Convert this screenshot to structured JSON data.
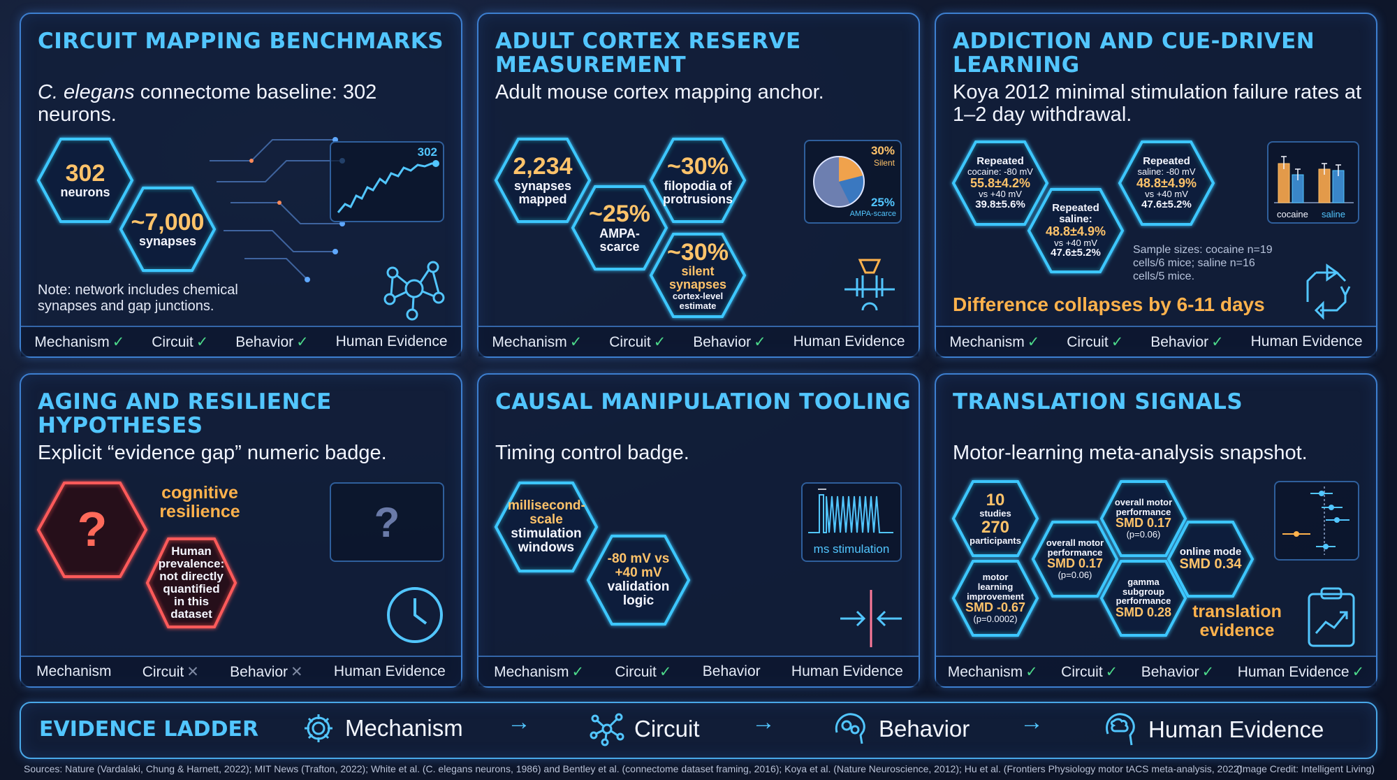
{
  "panels": {
    "p1": {
      "title": "CIRCUIT MAPPING BENCHMARKS",
      "sub_italic": "C. elegans",
      "sub_rest": " connectome baseline: 302 neurons.",
      "hex1_num": "302",
      "hex1_lbl": "neurons",
      "hex2_num": "~7,000",
      "hex2_lbl": "synapses",
      "chart_label": "302",
      "note": "Note: network includes chemical synapses and gap junctions.",
      "footer": {
        "mechanism": "Mechanism",
        "circuit": "Circuit",
        "behavior": "Behavior",
        "human": "Human Evidence"
      }
    },
    "p2": {
      "title": "ADULT CORTEX RESERVE MEASUREMENT",
      "sub": "Adult mouse cortex mapping anchor.",
      "hexA_num": "2,234",
      "hexA_lbl": "synapses mapped",
      "hexB_num": "~25%",
      "hexB_lbl": "AMPA-scarce",
      "hexC_num": "~30%",
      "hexC_lbl": "filopodia of protrusions",
      "hexD_num": "~30%",
      "hexD_lbl1": "silent synapses",
      "hexD_lbl2": "cortex-level estimate",
      "pie_a_pct": "30%",
      "pie_a_lbl": "Silent",
      "pie_b_pct": "25%",
      "pie_b_lbl": "AMPA-scarce",
      "footer": {
        "mechanism": "Mechanism",
        "circuit": "Circuit",
        "behavior": "Behavior",
        "human": "Human Evidence"
      }
    },
    "p3": {
      "title": "ADDICTION AND CUE-DRIVEN LEARNING",
      "sub": "Koya 2012 minimal stimulation failure rates at 1–2 day withdrawal.",
      "h1_l1": "Repeated",
      "h1_l2": "cocaine: -80 mV",
      "h1_v1": "55.8±4.2%",
      "h1_l3": "vs +40 mV",
      "h1_v2": "39.8±5.6%",
      "h2_l1": "Repeated",
      "h2_l2": "saline:",
      "h2_v1": "48.8±4.9%",
      "h2_l3": "vs +40 mV",
      "h2_v2": "47.6±5.2%",
      "h3_l1": "Repeated",
      "h3_l2": "saline: -80 mV",
      "h3_v1": "48.8±4.9%",
      "h3_l3": "vs +40 mV",
      "h3_v2": "47.6±5.2%",
      "bar_lbl1": "cocaine",
      "bar_lbl2": "saline",
      "sample": "Sample sizes: cocaine n=19 cells/6 mice; saline n=16 cells/5 mice.",
      "collapse": "Difference collapses by 6-11 days",
      "footer": {
        "mechanism": "Mechanism",
        "circuit": "Circuit",
        "behavior": "Behavior",
        "human": "Human Evidence"
      }
    },
    "p4": {
      "title": "AGING AND RESILIENCE HYPOTHESES",
      "sub": "Explicit “evidence gap” numeric badge.",
      "q": "?",
      "cog": "cognitive resilience",
      "prev": "Human prevalence: not directly quantified in this dataset",
      "box_q": "?",
      "footer": {
        "mechanism": "Mechanism",
        "circuit": "Circuit",
        "behavior": "Behavior",
        "human": "Human Evidence"
      }
    },
    "p5": {
      "title": "CAUSAL MANIPULATION TOOLING",
      "sub": "Timing control badge.",
      "h1_o": "millisecond-scale",
      "h1_w": "stimulation windows",
      "h2_o": "-80 mV vs +40 mV",
      "h2_w": "validation logic",
      "ms_lbl": "ms stimulation",
      "footer": {
        "mechanism": "Mechanism",
        "circuit": "Circuit",
        "behavior": "Behavior",
        "human": "Human Evidence"
      }
    },
    "p6": {
      "title": "TRANSLATION SIGNALS",
      "sub": "Motor-learning meta-analysis snapshot.",
      "a_n1": "10",
      "a_l1": "studies",
      "a_n2": "270",
      "a_l2": "participants",
      "b_l": "motor learning improvement",
      "b_v": "SMD -0.67",
      "b_p": "(p=0.0002)",
      "c_l": "overall motor performance",
      "c_v": "SMD 0.17",
      "c_p": "(p=0.06)",
      "d_l": "overall motor performance",
      "d_v": "SMD 0.17",
      "d_p": "(p=0.06)",
      "e_l": "gamma subgroup performance",
      "e_v": "SMD 0.28",
      "f_l": "online mode",
      "f_v": "SMD 0.34",
      "trans": "translation evidence",
      "footer": {
        "mechanism": "Mechanism",
        "circuit": "Circuit",
        "behavior": "Behavior",
        "human": "Human Evidence"
      }
    }
  },
  "ladder": {
    "title": "EVIDENCE LADDER",
    "items": [
      "Mechanism",
      "Circuit",
      "Behavior",
      "Human Evidence"
    ],
    "arrow": "→"
  },
  "sources": "Sources: Nature (Vardalaki, Chung & Harnett, 2022); MIT News (Trafton, 2022); White et al. (C. elegans neurons, 1986) and Bentley et al. (connectome dataset framing, 2016); Koya et al. (Nature Neuroscience, 2012); Hu et al. (Frontiers Physiology motor tACS meta-analysis, 2022).",
  "credit": "(Image Credit: Intelligent Living)",
  "checkmark": "✓",
  "cross": "✕",
  "colors": {
    "accent": "#52c6ff",
    "value": "#ffc36a",
    "check": "#4cd98a",
    "alert": "#ff5a5a"
  }
}
